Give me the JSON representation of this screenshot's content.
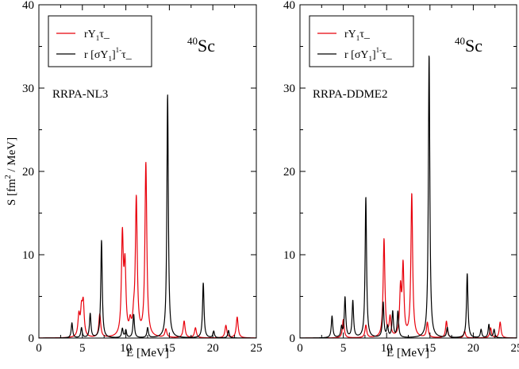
{
  "chart_data": [
    {
      "type": "line",
      "panel": "left",
      "nucleus": {
        "mass": "40",
        "symbol": "Sc"
      },
      "model_label": "RRPA-NL3",
      "xlabel": "E [MeV]",
      "ylabel": {
        "main": "S [fm",
        "sup": "2",
        "rest": " / MeV]"
      },
      "xlim": [
        0,
        25
      ],
      "ylim": [
        0,
        40
      ],
      "xticks": [
        0,
        5,
        10,
        15,
        20,
        25
      ],
      "yticks": [
        0,
        10,
        20,
        30,
        40
      ],
      "legend_position": "top-left",
      "series": [
        {
          "name": "rY1τ_",
          "legend": {
            "a": "rY",
            "sub": "1",
            "b": "τ_"
          },
          "color": "#e8000b",
          "width": 0.13,
          "peaks": [
            [
              4.6,
              2.5
            ],
            [
              4.9,
              2.9
            ],
            [
              5.1,
              3.8
            ],
            [
              7.0,
              2.8
            ],
            [
              9.6,
              11.8
            ],
            [
              9.9,
              7.9
            ],
            [
              10.5,
              1.4
            ],
            [
              10.9,
              1.6
            ],
            [
              11.2,
              16.4
            ],
            [
              12.3,
              20.8
            ],
            [
              14.6,
              1.0
            ],
            [
              16.7,
              2.0
            ],
            [
              18.0,
              1.2
            ],
            [
              21.5,
              1.5
            ],
            [
              22.8,
              2.5
            ]
          ]
        },
        {
          "name": "r [σY1]1-τ_",
          "legend": {
            "a": "r [σY",
            "sub": "1",
            "b": "]",
            "sup": "1-",
            "c": "τ_"
          },
          "color": "#000000",
          "width": 0.1,
          "peaks": [
            [
              3.8,
              1.8
            ],
            [
              4.9,
              1.2
            ],
            [
              5.9,
              2.9
            ],
            [
              7.2,
              11.7
            ],
            [
              9.6,
              1.1
            ],
            [
              10.0,
              0.9
            ],
            [
              10.9,
              2.8
            ],
            [
              12.5,
              1.2
            ],
            [
              14.8,
              29.2
            ],
            [
              18.9,
              6.6
            ],
            [
              20.1,
              0.8
            ],
            [
              21.8,
              0.9
            ]
          ]
        }
      ]
    },
    {
      "type": "line",
      "panel": "right",
      "nucleus": {
        "mass": "40",
        "symbol": "Sc"
      },
      "model_label": "RRPA-DDME2",
      "xlabel": "E [MeV]",
      "xlim": [
        0,
        25
      ],
      "ylim": [
        0,
        40
      ],
      "xticks": [
        0,
        5,
        10,
        15,
        20,
        25
      ],
      "yticks": [
        0,
        10,
        20,
        30,
        40
      ],
      "legend_position": "top-left",
      "series": [
        {
          "name": "rY1τ_",
          "legend": {
            "a": "rY",
            "sub": "1",
            "b": "τ_"
          },
          "color": "#e8000b",
          "width": 0.12,
          "peaks": [
            [
              5.0,
              2.2
            ],
            [
              7.6,
              1.5
            ],
            [
              9.7,
              11.8
            ],
            [
              10.4,
              2.3
            ],
            [
              11.6,
              5.5
            ],
            [
              11.9,
              8.3
            ],
            [
              12.9,
              17.2
            ],
            [
              14.7,
              1.8
            ],
            [
              16.9,
              2.0
            ],
            [
              19.0,
              0.8
            ],
            [
              22.0,
              1.2
            ],
            [
              23.1,
              1.9
            ]
          ]
        },
        {
          "name": "r [σY1]1-τ_",
          "legend": {
            "a": "r [σY",
            "sub": "1",
            "b": "]",
            "sup": "1-",
            "c": "τ_"
          },
          "color": "#000000",
          "width": 0.1,
          "peaks": [
            [
              3.7,
              2.6
            ],
            [
              4.8,
              1.2
            ],
            [
              5.2,
              4.8
            ],
            [
              6.1,
              4.4
            ],
            [
              7.6,
              16.9
            ],
            [
              9.6,
              4.2
            ],
            [
              10.1,
              1.3
            ],
            [
              10.7,
              3.1
            ],
            [
              11.3,
              3.1
            ],
            [
              14.9,
              34.0
            ],
            [
              17.0,
              1.2
            ],
            [
              19.3,
              7.7
            ],
            [
              20.9,
              1.0
            ],
            [
              21.8,
              1.6
            ],
            [
              22.4,
              1.0
            ]
          ]
        }
      ]
    }
  ]
}
